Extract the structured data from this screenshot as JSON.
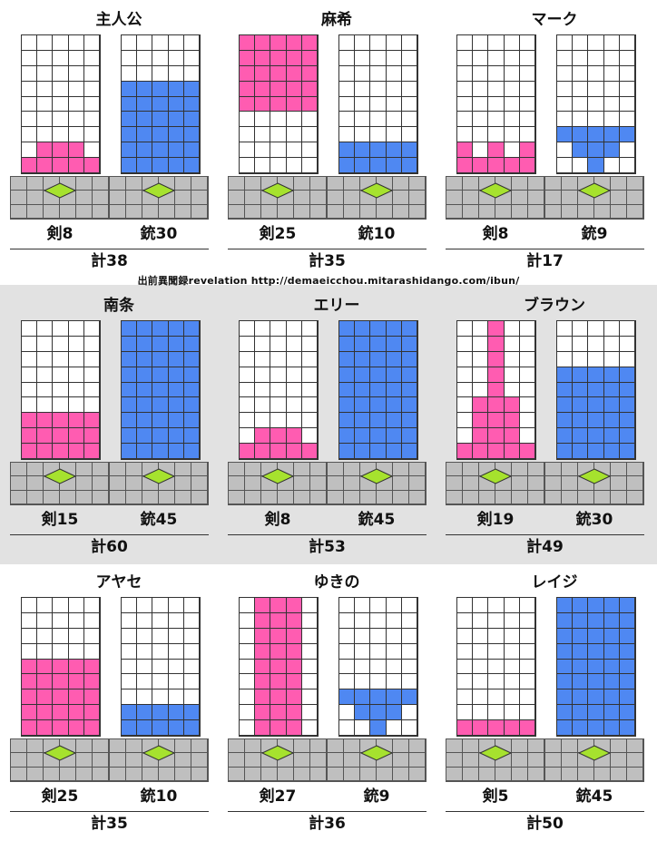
{
  "credit": "出前異聞録revelation  http://demaeicchou.mitarashidango.com/ibun/",
  "colors": {
    "sword": "#ff5cb1",
    "gun": "#4f88f2",
    "gem": "#a6e22e",
    "base": "#bfbfbf",
    "band": "#e2e2e2"
  },
  "cards": [
    {
      "name": "主人公",
      "sword_label": "剣8",
      "gun_label": "銃30",
      "total_label": "計38",
      "sword_rows": [
        "00000",
        "00000",
        "00000",
        "00000",
        "00000",
        "00000",
        "00000",
        "01110",
        "11111"
      ],
      "gun_rows": [
        "00000",
        "00000",
        "00000",
        "11111",
        "11111",
        "11111",
        "11111",
        "11111",
        "11111"
      ]
    },
    {
      "name": "麻希",
      "sword_label": "剣25",
      "gun_label": "銃10",
      "total_label": "計35",
      "sword_rows": [
        "11111",
        "11111",
        "11111",
        "11111",
        "11111",
        "00000",
        "00000",
        "00000",
        "00000"
      ],
      "gun_rows": [
        "00000",
        "00000",
        "00000",
        "00000",
        "00000",
        "00000",
        "00000",
        "11111",
        "11111"
      ]
    },
    {
      "name": "マーク",
      "sword_label": "剣8",
      "gun_label": "銃9",
      "total_label": "計17",
      "sword_rows": [
        "00000",
        "00000",
        "00000",
        "00000",
        "00000",
        "00000",
        "00000",
        "10101",
        "11111"
      ],
      "gun_rows": [
        "00000",
        "00000",
        "00000",
        "00000",
        "00000",
        "00000",
        "11111",
        "01110",
        "00100"
      ]
    },
    {
      "name": "南条",
      "sword_label": "剣15",
      "gun_label": "銃45",
      "total_label": "計60",
      "sword_rows": [
        "00000",
        "00000",
        "00000",
        "00000",
        "00000",
        "00000",
        "11111",
        "11111",
        "11111"
      ],
      "gun_rows": [
        "11111",
        "11111",
        "11111",
        "11111",
        "11111",
        "11111",
        "11111",
        "11111",
        "11111"
      ]
    },
    {
      "name": "エリー",
      "sword_label": "剣8",
      "gun_label": "銃45",
      "total_label": "計53",
      "sword_rows": [
        "00000",
        "00000",
        "00000",
        "00000",
        "00000",
        "00000",
        "00000",
        "01110",
        "11111"
      ],
      "gun_rows": [
        "11111",
        "11111",
        "11111",
        "11111",
        "11111",
        "11111",
        "11111",
        "11111",
        "11111"
      ]
    },
    {
      "name": "ブラウン",
      "sword_label": "剣19",
      "gun_label": "銃30",
      "total_label": "計49",
      "sword_rows": [
        "00100",
        "00100",
        "00100",
        "00100",
        "00100",
        "01110",
        "01110",
        "01110",
        "11111"
      ],
      "gun_rows": [
        "00000",
        "00000",
        "00000",
        "11111",
        "11111",
        "11111",
        "11111",
        "11111",
        "11111"
      ]
    },
    {
      "name": "アヤセ",
      "sword_label": "剣25",
      "gun_label": "銃10",
      "total_label": "計35",
      "sword_rows": [
        "00000",
        "00000",
        "00000",
        "00000",
        "11111",
        "11111",
        "11111",
        "11111",
        "11111"
      ],
      "gun_rows": [
        "00000",
        "00000",
        "00000",
        "00000",
        "00000",
        "00000",
        "00000",
        "11111",
        "11111"
      ]
    },
    {
      "name": "ゆきの",
      "sword_label": "剣27",
      "gun_label": "銃9",
      "total_label": "計36",
      "sword_rows": [
        "01110",
        "01110",
        "01110",
        "01110",
        "01110",
        "01110",
        "01110",
        "01110",
        "01110"
      ],
      "gun_rows": [
        "00000",
        "00000",
        "00000",
        "00000",
        "00000",
        "00000",
        "11111",
        "01110",
        "00100"
      ]
    },
    {
      "name": "レイジ",
      "sword_label": "剣5",
      "gun_label": "銃45",
      "total_label": "計50",
      "sword_rows": [
        "00000",
        "00000",
        "00000",
        "00000",
        "00000",
        "00000",
        "00000",
        "00000",
        "11111"
      ],
      "gun_rows": [
        "11111",
        "11111",
        "11111",
        "11111",
        "11111",
        "11111",
        "11111",
        "11111",
        "11111"
      ]
    }
  ]
}
